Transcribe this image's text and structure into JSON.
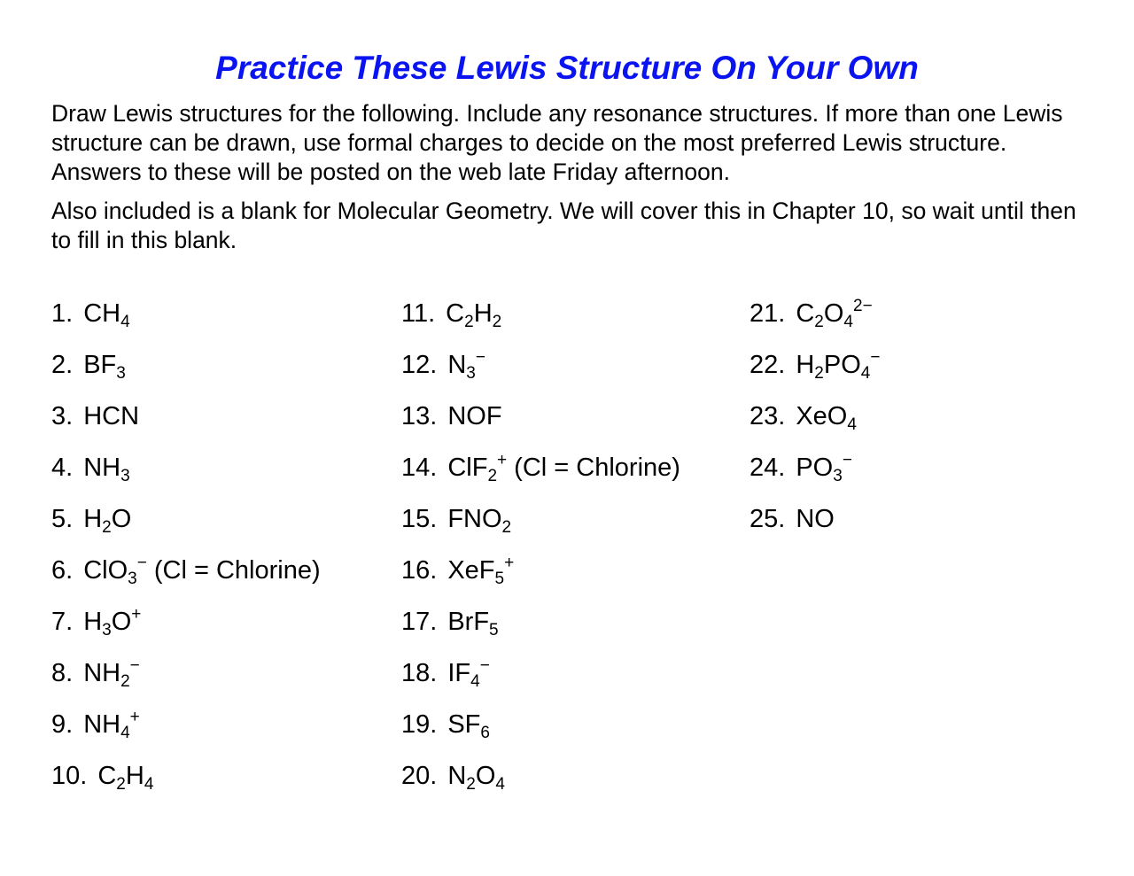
{
  "title": "Practice These Lewis Structure On Your Own",
  "instructions": "Draw Lewis structures for the following.  Include any resonance structures.  If more than one Lewis structure can be drawn, use formal charges to decide on the most preferred Lewis structure.  Answers to these will be posted on the web late Friday afternoon.",
  "note": "Also included is a blank for Molecular Geometry.  We will cover this in Chapter 10, so wait until then to fill in this blank.",
  "columns": [
    [
      {
        "num": "1.",
        "parts": [
          [
            "CH"
          ],
          [
            "4",
            "sub"
          ]
        ]
      },
      {
        "num": "2.",
        "parts": [
          [
            "BF"
          ],
          [
            "3",
            "sub"
          ]
        ]
      },
      {
        "num": "3.",
        "parts": [
          [
            "HCN"
          ]
        ]
      },
      {
        "num": "4.",
        "parts": [
          [
            "NH"
          ],
          [
            "3",
            "sub"
          ]
        ]
      },
      {
        "num": "5.",
        "parts": [
          [
            "H"
          ],
          [
            "2",
            "sub"
          ],
          [
            "O"
          ]
        ]
      },
      {
        "num": "6.",
        "parts": [
          [
            "ClO"
          ],
          [
            "3",
            "sub"
          ],
          [
            "−",
            "sup"
          ],
          [
            " (Cl = Chlorine)"
          ]
        ]
      },
      {
        "num": "7.",
        "parts": [
          [
            "H"
          ],
          [
            "3",
            "sub"
          ],
          [
            "O"
          ],
          [
            "+",
            "sup"
          ]
        ]
      },
      {
        "num": "8.",
        "parts": [
          [
            "NH"
          ],
          [
            "2",
            "sub"
          ],
          [
            "−",
            "sup"
          ]
        ]
      },
      {
        "num": "9.",
        "parts": [
          [
            "NH"
          ],
          [
            "4",
            "sub"
          ],
          [
            "+",
            "sup"
          ]
        ]
      },
      {
        "num": "10.",
        "parts": [
          [
            "C"
          ],
          [
            "2",
            "sub"
          ],
          [
            "H"
          ],
          [
            "4",
            "sub"
          ]
        ]
      }
    ],
    [
      {
        "num": "11.",
        "parts": [
          [
            "C"
          ],
          [
            "2",
            "sub"
          ],
          [
            "H"
          ],
          [
            "2",
            "sub"
          ]
        ]
      },
      {
        "num": "12.",
        "parts": [
          [
            "N"
          ],
          [
            "3",
            "sub"
          ],
          [
            "−",
            "sup"
          ]
        ]
      },
      {
        "num": "13.",
        "parts": [
          [
            "NOF"
          ]
        ]
      },
      {
        "num": "14.",
        "parts": [
          [
            "ClF"
          ],
          [
            "2",
            "sub"
          ],
          [
            "+",
            "sup"
          ],
          [
            " (Cl = Chlorine)"
          ]
        ]
      },
      {
        "num": "15.",
        "parts": [
          [
            "FNO"
          ],
          [
            "2",
            "sub"
          ]
        ]
      },
      {
        "num": "16.",
        "parts": [
          [
            "XeF"
          ],
          [
            "5",
            "sub"
          ],
          [
            "+",
            "sup"
          ]
        ]
      },
      {
        "num": "17.",
        "parts": [
          [
            "BrF"
          ],
          [
            "5",
            "sub"
          ]
        ]
      },
      {
        "num": "18.",
        "parts": [
          [
            "IF"
          ],
          [
            "4",
            "sub"
          ],
          [
            "−",
            "sup"
          ]
        ]
      },
      {
        "num": "19.",
        "parts": [
          [
            "SF"
          ],
          [
            "6",
            "sub"
          ]
        ]
      },
      {
        "num": "20.",
        "parts": [
          [
            "N"
          ],
          [
            "2",
            "sub"
          ],
          [
            "O"
          ],
          [
            "4",
            "sub"
          ]
        ]
      }
    ],
    [
      {
        "num": "21.",
        "parts": [
          [
            "C"
          ],
          [
            "2",
            "sub"
          ],
          [
            "O"
          ],
          [
            "4",
            "sub"
          ],
          [
            "2−",
            "sup"
          ]
        ]
      },
      {
        "num": "22.",
        "parts": [
          [
            "H"
          ],
          [
            "2",
            "sub"
          ],
          [
            "PO"
          ],
          [
            "4",
            "sub"
          ],
          [
            "−",
            "sup"
          ]
        ]
      },
      {
        "num": "23.",
        "parts": [
          [
            "XeO"
          ],
          [
            "4",
            "sub"
          ]
        ]
      },
      {
        "num": "24.",
        "parts": [
          [
            "PO"
          ],
          [
            "3",
            "sub"
          ],
          [
            "−",
            "sup"
          ]
        ]
      },
      {
        "num": "25.",
        "parts": [
          [
            "NO"
          ]
        ]
      }
    ]
  ]
}
